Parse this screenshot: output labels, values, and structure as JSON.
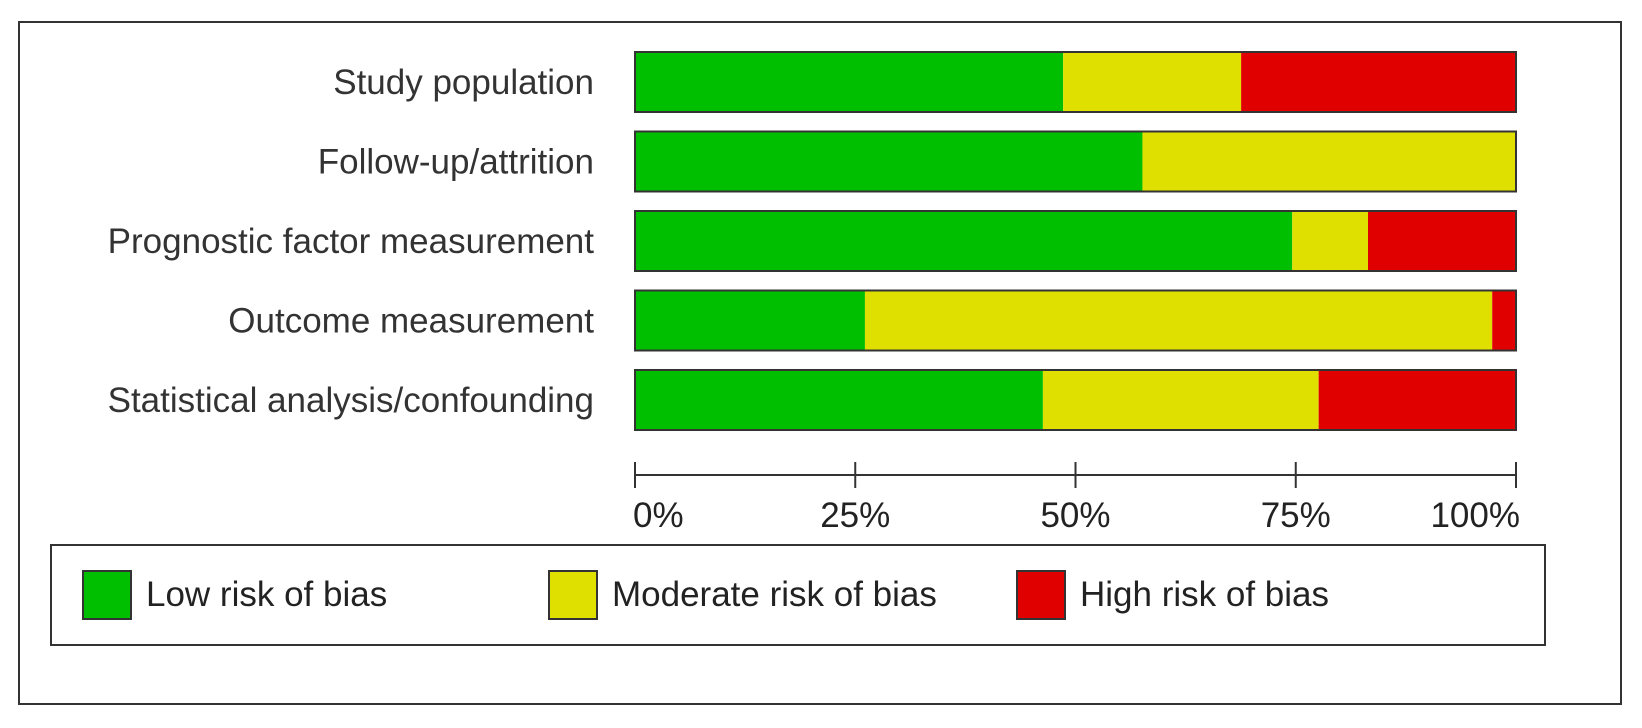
{
  "chart_data": {
    "type": "bar",
    "orientation": "horizontal",
    "stacked": true,
    "normalized": true,
    "categories": [
      "Study population",
      "Follow-up/attrition",
      "Prognostic factor measurement",
      "Outcome measurement",
      "Statistical analysis/confounding"
    ],
    "series": [
      {
        "name": "Low risk of bias",
        "color": "#00bf00",
        "values": [
          48.6,
          57.6,
          74.6,
          26.1,
          46.3
        ]
      },
      {
        "name": "Moderate risk of bias",
        "color": "#e0e000",
        "values": [
          20.2,
          42.4,
          8.6,
          71.2,
          31.3
        ]
      },
      {
        "name": "High risk of bias",
        "color": "#e00000",
        "values": [
          31.2,
          0.0,
          16.8,
          2.7,
          22.4
        ]
      }
    ],
    "xlim": [
      0,
      100
    ],
    "xticks": [
      0,
      25,
      50,
      75,
      100
    ],
    "xtick_labels": [
      "0%",
      "25%",
      "50%",
      "75%",
      "100%"
    ],
    "title": "",
    "xlabel": "",
    "ylabel": "",
    "legend_position": "bottom"
  }
}
